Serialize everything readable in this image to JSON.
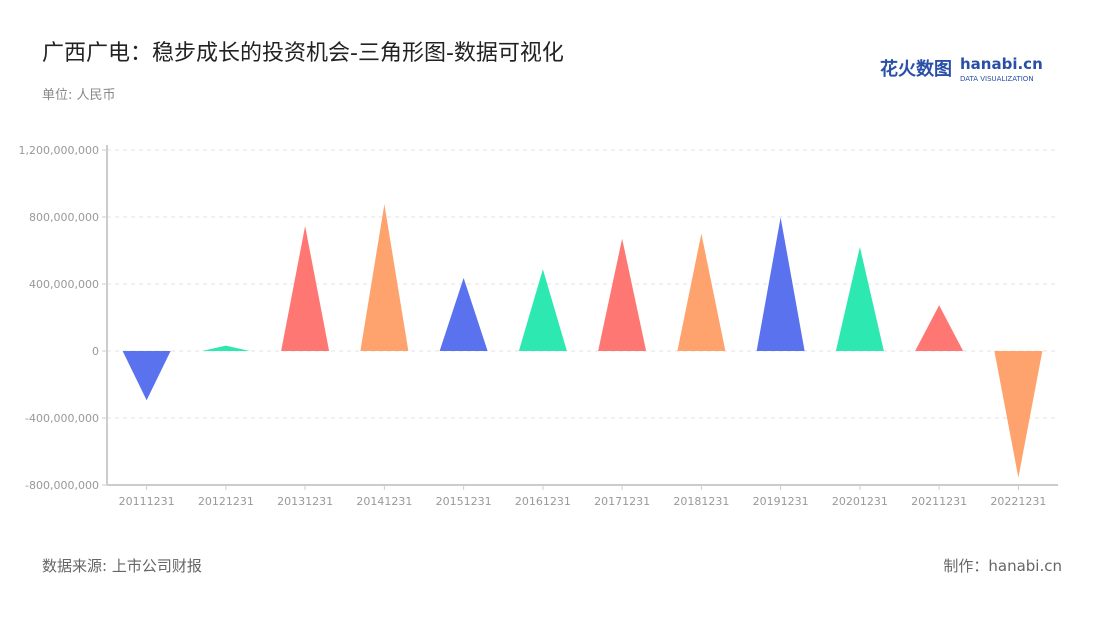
{
  "header": {
    "title": "广西广电：稳步成长的投资机会-三角形图-数据可视化",
    "unit": "单位: 人民币"
  },
  "logo": {
    "cn": "花火数图",
    "en": "hanabi.cn",
    "tagline": "DATA VISUALIZATION"
  },
  "footer": {
    "source": "数据来源: 上市公司财报",
    "maker": "制作：hanabi.cn"
  },
  "chart_data": {
    "type": "bar",
    "mark": "triangle",
    "categories": [
      "20111231",
      "20121231",
      "20131231",
      "20141231",
      "20151231",
      "20161231",
      "20171231",
      "20181231",
      "20191231",
      "20201231",
      "20211231",
      "20221231"
    ],
    "values": [
      -294000000,
      32000000,
      746000000,
      876000000,
      436000000,
      488000000,
      671000000,
      701000000,
      797000000,
      621000000,
      273000000,
      -756000000
    ],
    "colors": [
      "#5A72EE",
      "#2DE8B0",
      "#FF7773",
      "#FFA36E"
    ],
    "ylim": [
      -800000000,
      1200000000
    ],
    "yticks": [
      -800000000,
      -400000000,
      0,
      400000000,
      800000000,
      1200000000
    ],
    "ytick_labels": [
      "-800,000,000",
      "-400,000,000",
      "0",
      "400,000,000",
      "800,000,000",
      "1,200,000,000"
    ],
    "grid": true,
    "legend": "none"
  }
}
